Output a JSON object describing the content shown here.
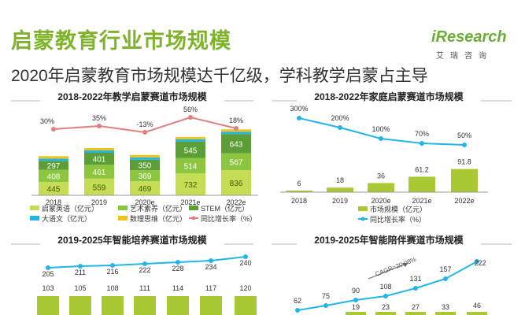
{
  "page": {
    "title": "启蒙教育行业市场规模",
    "subtitle": "2020年启蒙教育市场规模达千亿级，学科教学启蒙占主导",
    "logo_text": "iResearch",
    "logo_cn": "艾瑞咨询"
  },
  "colors": {
    "green_dark": "#5a9e35",
    "green": "#8cc63f",
    "green_light": "#c5dc55",
    "lime": "#a8c933",
    "yellow": "#f0c419",
    "cyan": "#22b5e8",
    "pink": "#e07f7f",
    "title_green": "#7fb32a"
  },
  "chart_data": [
    {
      "id": "chart1",
      "type": "bar",
      "stacked": true,
      "title": "2018-2022年教学启蒙赛道市场规模",
      "categories": [
        "2018",
        "2019",
        "2020e",
        "2021e",
        "2022e"
      ],
      "series": [
        {
          "name": "启蒙英语（亿元）",
          "values": [
            445,
            559,
            469,
            732,
            836
          ]
        },
        {
          "name": "艺术素养（亿元）",
          "values": [
            408,
            461,
            369,
            514,
            567
          ]
        },
        {
          "name": "STEM（亿元）",
          "values": [
            297,
            401,
            350,
            545,
            643
          ]
        },
        {
          "name": "数理思维（亿元）",
          "values": [
            null,
            null,
            null,
            null,
            null
          ]
        },
        {
          "name": "大语文（亿元）",
          "values": [
            null,
            null,
            null,
            null,
            null
          ]
        }
      ],
      "line": {
        "name": "同比增长率（%）",
        "values": [
          "30%",
          "35%",
          "-13%",
          "56%",
          "18%"
        ],
        "numeric": [
          30,
          35,
          -13,
          56,
          18
        ]
      },
      "legend": [
        "启蒙英语（亿元）",
        "艺术素养（亿元）",
        "STEM（亿元）",
        "大语文（亿元）",
        "数理思维（亿元）",
        "同比增长率（%）"
      ],
      "legend_position": "bottom"
    },
    {
      "id": "chart2",
      "type": "bar",
      "title": "2018-2022年家庭启蒙赛道市场规模",
      "categories": [
        "2018",
        "2019",
        "2020e",
        "2021e",
        "2022e"
      ],
      "series": [
        {
          "name": "市场规模（亿元）",
          "values": [
            6,
            18,
            36,
            61.2,
            91.8
          ],
          "labels": [
            "6",
            "18",
            "36",
            "61.2",
            "91.8"
          ]
        }
      ],
      "line": {
        "name": "同比增长率（%）",
        "values": [
          "300%",
          "200%",
          "100%",
          "70%",
          "50%"
        ],
        "numeric": [
          300,
          200,
          100,
          70,
          50
        ]
      },
      "legend": [
        "市场规模（亿元）",
        "同比增长率（%）"
      ],
      "legend_position": "bottom"
    },
    {
      "id": "chart3",
      "type": "bar",
      "title": "2019-2025年智能培养赛道市场规模",
      "categories": [
        "",
        "",
        "",
        "",
        "",
        "",
        ""
      ],
      "series": [
        {
          "name": "",
          "values": [
            103,
            105,
            108,
            111,
            114,
            117,
            120
          ],
          "labels": [
            "103",
            "105",
            "108",
            "111",
            "114",
            "117",
            "120"
          ]
        }
      ],
      "line": {
        "name": "",
        "values": [
          "205",
          "211",
          "216",
          "222",
          "228",
          "234",
          "240"
        ],
        "numeric": [
          205,
          211,
          216,
          222,
          228,
          234,
          240
        ]
      }
    },
    {
      "id": "chart4",
      "type": "bar",
      "title": "2019-2025年智能陪伴赛道市场规模",
      "annotation": "CAGR=20.08%",
      "categories": [
        "",
        "",
        "",
        "",
        "",
        "",
        ""
      ],
      "series": [
        {
          "name": "",
          "values": [
            null,
            null,
            19,
            23,
            27,
            33,
            46
          ],
          "labels": [
            "",
            "",
            "19",
            "23",
            "27",
            "33",
            "46"
          ]
        }
      ],
      "line": {
        "name": "",
        "values": [
          "62",
          "75",
          "90",
          "108",
          "131",
          "157",
          "222"
        ],
        "numeric": [
          62,
          75,
          90,
          108,
          131,
          157,
          222
        ]
      }
    }
  ]
}
